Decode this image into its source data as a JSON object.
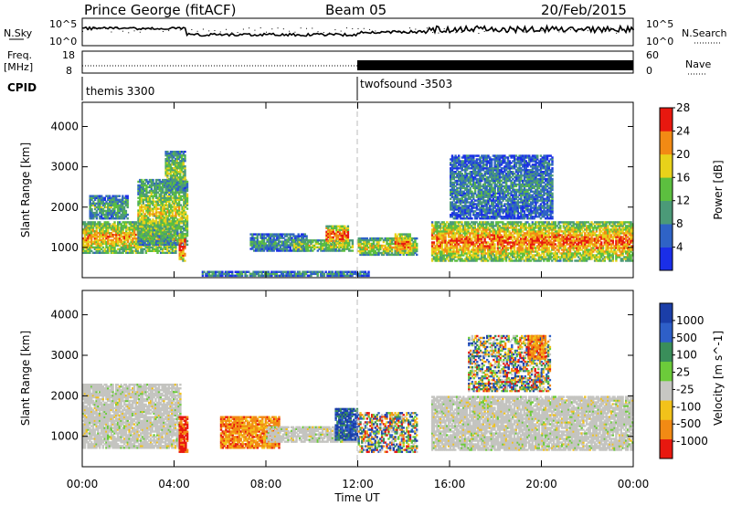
{
  "header": {
    "station": "Prince George (fitACF)",
    "beam": "Beam 05",
    "date": "20/Feb/2015"
  },
  "strips": {
    "nsky_label": "N.Sky",
    "nsky_tick_hi": "10^5",
    "nsky_tick_lo": "10^0",
    "nsearch_label": "N.Search",
    "nsearch_tick_hi": "10^5",
    "nsearch_tick_lo": "10^0",
    "freq_label_1": "Freq.",
    "freq_label_2": "[MHz]",
    "freq_tick_hi": "18",
    "freq_tick_lo": "8",
    "nave_label": "Nave",
    "nave_tick_hi": "60",
    "nave_tick_lo": "0",
    "cpid_label": "CPID",
    "cpid_1": "themis 3300",
    "cpid_2": "twofsound -3503"
  },
  "chart_data": [
    {
      "type": "heatmap",
      "panel": "power",
      "ylabel": "Slant Range [km]",
      "yticks": [
        "1000",
        "2000",
        "3000",
        "4000"
      ],
      "ylim": [
        250,
        4600
      ],
      "xlim": [
        "00:00",
        "24:00"
      ],
      "colorbar_label": "Power [dB]",
      "colorbar_ticks": [
        "4",
        "8",
        "12",
        "16",
        "20",
        "24",
        "28"
      ],
      "colorbar_colors": [
        "#1a2ee8",
        "#2f63c6",
        "#4b9a78",
        "#5cbf3f",
        "#e8d21a",
        "#f28a14",
        "#e8180f"
      ],
      "regions": [
        {
          "t0": 0.0,
          "t1": 4.1,
          "r0": 850,
          "r1": 1650,
          "level": 0.72
        },
        {
          "t0": 2.4,
          "t1": 4.6,
          "r0": 1050,
          "r1": 2700,
          "level": 0.55
        },
        {
          "t0": 4.2,
          "t1": 4.5,
          "r0": 650,
          "r1": 1350,
          "level": 0.9
        },
        {
          "t0": 7.3,
          "t1": 9.8,
          "r0": 900,
          "r1": 1350,
          "level": 0.35
        },
        {
          "t0": 9.2,
          "t1": 11.8,
          "r0": 900,
          "r1": 1200,
          "level": 0.55
        },
        {
          "t0": 10.6,
          "t1": 11.6,
          "r0": 1050,
          "r1": 1550,
          "level": 0.85
        },
        {
          "t0": 12.0,
          "t1": 14.6,
          "r0": 800,
          "r1": 1250,
          "level": 0.6
        },
        {
          "t0": 13.6,
          "t1": 14.3,
          "r0": 850,
          "r1": 1350,
          "level": 0.8
        },
        {
          "t0": 15.2,
          "t1": 24.0,
          "r0": 650,
          "r1": 1650,
          "level": 0.78
        },
        {
          "t0": 16.0,
          "t1": 20.5,
          "r0": 1700,
          "r1": 3300,
          "level": 0.3
        },
        {
          "t0": 0.3,
          "t1": 2.0,
          "r0": 1700,
          "r1": 2300,
          "level": 0.4
        },
        {
          "t0": 3.6,
          "t1": 4.5,
          "r0": 2400,
          "r1": 3400,
          "level": 0.5
        },
        {
          "t0": 5.2,
          "t1": 12.5,
          "r0": 280,
          "r1": 420,
          "level": 0.3
        }
      ]
    },
    {
      "type": "heatmap",
      "panel": "velocity",
      "ylabel": "Slant Range [km]",
      "yticks": [
        "1000",
        "2000",
        "3000",
        "4000"
      ],
      "ylim": [
        250,
        4600
      ],
      "xlim": [
        "00:00",
        "24:00"
      ],
      "xlabel": "Time UT",
      "xticks": [
        "00:00",
        "04:00",
        "08:00",
        "12:00",
        "16:00",
        "20:00",
        "00:00"
      ],
      "colorbar_label": "Velocity [m s^-1]",
      "colorbar_ticks": [
        "1000",
        "500",
        "100",
        "25",
        "-25",
        "-100",
        "-500",
        "-1000"
      ],
      "colorbar_colors": [
        "#1b3ea8",
        "#2e5fc8",
        "#3a8e5a",
        "#6ccb3a",
        "#c7c7c3",
        "#f2c21a",
        "#f28a14",
        "#e8180f"
      ],
      "regions": [
        {
          "t0": 0.0,
          "t1": 4.3,
          "r0": 700,
          "r1": 2300,
          "kind": "gray"
        },
        {
          "t0": 4.2,
          "t1": 4.6,
          "r0": 600,
          "r1": 1500,
          "kind": "red"
        },
        {
          "t0": 6.0,
          "t1": 8.6,
          "r0": 700,
          "r1": 1500,
          "kind": "orange"
        },
        {
          "t0": 8.0,
          "t1": 12.0,
          "r0": 850,
          "r1": 1250,
          "kind": "gray"
        },
        {
          "t0": 11.0,
          "t1": 12.0,
          "r0": 900,
          "r1": 1700,
          "kind": "blue"
        },
        {
          "t0": 12.0,
          "t1": 14.6,
          "r0": 600,
          "r1": 1600,
          "kind": "mixed"
        },
        {
          "t0": 15.2,
          "t1": 24.0,
          "r0": 650,
          "r1": 2000,
          "kind": "gray"
        },
        {
          "t0": 16.8,
          "t1": 20.4,
          "r0": 2100,
          "r1": 3500,
          "kind": "mixed"
        },
        {
          "t0": 19.4,
          "t1": 20.2,
          "r0": 2900,
          "r1": 3500,
          "kind": "orange"
        }
      ]
    }
  ],
  "time_axis": {
    "xlabel": "Time UT",
    "xticks": [
      "00:00",
      "04:00",
      "08:00",
      "12:00",
      "16:00",
      "20:00",
      "00:00"
    ]
  }
}
